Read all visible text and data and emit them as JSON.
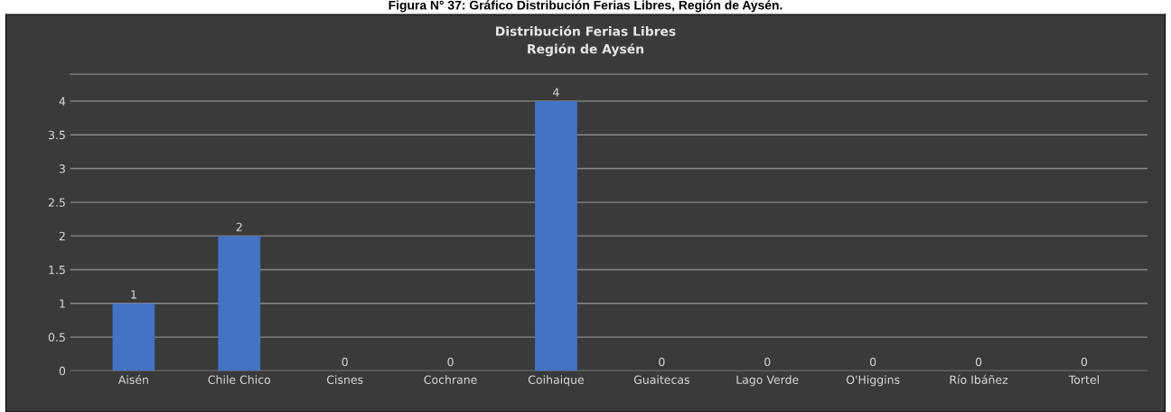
{
  "chart_data": {
    "type": "bar",
    "title": "Distribución Ferias Libres\nRegión de Aysén",
    "annotations": [
      "Figura N° 37: Gráfico Distribución Ferias Libres, Región de Aysén."
    ],
    "categories": [
      "Aisén",
      "Chile Chico",
      "Cisnes",
      "Cochrane",
      "Coihaique",
      "Guaitecas",
      "Lago Verde",
      "O'Higgins",
      "Río Ibáñez",
      "Tortel"
    ],
    "values": [
      1,
      2,
      0,
      0,
      4,
      0,
      0,
      0,
      0,
      0
    ],
    "color": "#4472c4",
    "ylim": [
      0,
      4.4
    ],
    "yticks": [
      0,
      0.5,
      1,
      1.5,
      2,
      2.5,
      3,
      3.5,
      4
    ],
    "grid": "y",
    "data_labels": true
  }
}
